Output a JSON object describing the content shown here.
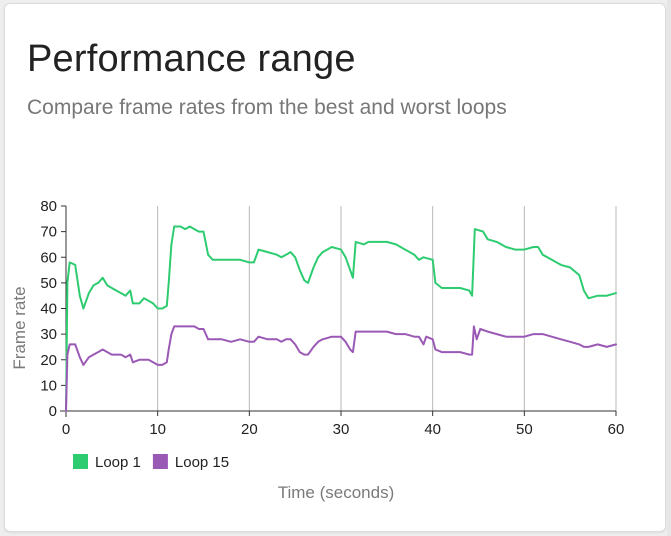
{
  "card": {
    "title": "Performance range",
    "subtitle": "Compare frame rates from the best and worst loops"
  },
  "chart_data": {
    "type": "line",
    "xlabel": "Time (seconds)",
    "ylabel": "Frame rate",
    "xlim": [
      0,
      60
    ],
    "ylim": [
      0,
      80
    ],
    "x_ticks": [
      0,
      10,
      20,
      30,
      40,
      50,
      60
    ],
    "y_ticks": [
      0,
      10,
      20,
      30,
      40,
      50,
      60,
      70,
      80
    ],
    "grid": "vertical",
    "legend_position": "bottom-left",
    "series": [
      {
        "name": "Loop 1",
        "color": "#2ecc71",
        "points": [
          [
            0,
            0
          ],
          [
            0.15,
            50
          ],
          [
            0.4,
            58
          ],
          [
            1.0,
            57
          ],
          [
            1.5,
            45
          ],
          [
            1.9,
            40
          ],
          [
            2.5,
            46
          ],
          [
            3.0,
            49
          ],
          [
            3.5,
            50
          ],
          [
            4.0,
            52
          ],
          [
            4.5,
            49
          ],
          [
            5.0,
            48
          ],
          [
            5.5,
            47
          ],
          [
            6.0,
            46
          ],
          [
            6.5,
            45
          ],
          [
            7.0,
            47
          ],
          [
            7.3,
            42
          ],
          [
            8.0,
            42
          ],
          [
            8.5,
            44
          ],
          [
            9.0,
            43
          ],
          [
            9.5,
            42
          ],
          [
            10.0,
            40
          ],
          [
            10.5,
            40
          ],
          [
            11.0,
            41
          ],
          [
            11.2,
            50
          ],
          [
            11.5,
            65
          ],
          [
            11.8,
            72
          ],
          [
            12.5,
            72
          ],
          [
            13.0,
            71
          ],
          [
            13.5,
            72
          ],
          [
            14.0,
            71
          ],
          [
            14.5,
            70
          ],
          [
            15.0,
            70
          ],
          [
            15.5,
            61
          ],
          [
            16.0,
            59
          ],
          [
            17.0,
            59
          ],
          [
            18.0,
            59
          ],
          [
            19.0,
            59
          ],
          [
            20.0,
            58
          ],
          [
            20.5,
            58
          ],
          [
            21.0,
            63
          ],
          [
            22.0,
            62
          ],
          [
            23.0,
            61
          ],
          [
            23.5,
            60
          ],
          [
            24.0,
            61
          ],
          [
            24.5,
            62
          ],
          [
            25.0,
            60
          ],
          [
            25.5,
            55
          ],
          [
            26.0,
            51
          ],
          [
            26.4,
            50
          ],
          [
            27.0,
            56
          ],
          [
            27.5,
            60
          ],
          [
            28.0,
            62
          ],
          [
            29.0,
            64
          ],
          [
            30.0,
            63
          ],
          [
            30.5,
            60
          ],
          [
            31.0,
            55
          ],
          [
            31.3,
            52
          ],
          [
            31.6,
            66
          ],
          [
            32.5,
            65
          ],
          [
            33.0,
            66
          ],
          [
            34.0,
            66
          ],
          [
            35.0,
            66
          ],
          [
            36.0,
            65
          ],
          [
            37.0,
            63
          ],
          [
            38.0,
            61
          ],
          [
            38.5,
            59
          ],
          [
            39.0,
            60
          ],
          [
            40.0,
            59
          ],
          [
            40.3,
            50
          ],
          [
            41.0,
            48
          ],
          [
            42.0,
            48
          ],
          [
            43.0,
            48
          ],
          [
            44.0,
            47
          ],
          [
            44.3,
            45
          ],
          [
            44.6,
            71
          ],
          [
            45.5,
            70
          ],
          [
            46.0,
            67
          ],
          [
            47.0,
            66
          ],
          [
            48.0,
            64
          ],
          [
            49.0,
            63
          ],
          [
            50.0,
            63
          ],
          [
            51.0,
            64
          ],
          [
            51.5,
            64
          ],
          [
            52.0,
            61
          ],
          [
            52.5,
            60
          ],
          [
            53.0,
            59
          ],
          [
            54.0,
            57
          ],
          [
            55.0,
            56
          ],
          [
            56.0,
            53
          ],
          [
            56.5,
            47
          ],
          [
            57.0,
            44
          ],
          [
            58.0,
            45
          ],
          [
            59.0,
            45
          ],
          [
            60.0,
            46
          ]
        ]
      },
      {
        "name": "Loop 15",
        "color": "#9b59b6",
        "points": [
          [
            0,
            0
          ],
          [
            0.15,
            22
          ],
          [
            0.4,
            26
          ],
          [
            1.0,
            26
          ],
          [
            1.5,
            21
          ],
          [
            1.9,
            18
          ],
          [
            2.5,
            21
          ],
          [
            3.0,
            22
          ],
          [
            3.5,
            23
          ],
          [
            4.0,
            24
          ],
          [
            4.5,
            23
          ],
          [
            5.0,
            22
          ],
          [
            5.5,
            22
          ],
          [
            6.0,
            22
          ],
          [
            6.5,
            21
          ],
          [
            7.0,
            22
          ],
          [
            7.3,
            19
          ],
          [
            8.0,
            20
          ],
          [
            8.5,
            20
          ],
          [
            9.0,
            20
          ],
          [
            9.5,
            19
          ],
          [
            10.0,
            18
          ],
          [
            10.5,
            18
          ],
          [
            11.0,
            19
          ],
          [
            11.2,
            24
          ],
          [
            11.5,
            30
          ],
          [
            11.8,
            33
          ],
          [
            12.5,
            33
          ],
          [
            13.0,
            33
          ],
          [
            13.5,
            33
          ],
          [
            14.0,
            33
          ],
          [
            14.5,
            32
          ],
          [
            15.0,
            32
          ],
          [
            15.5,
            28
          ],
          [
            16.0,
            28
          ],
          [
            17.0,
            28
          ],
          [
            18.0,
            27
          ],
          [
            19.0,
            28
          ],
          [
            20.0,
            27
          ],
          [
            20.5,
            27
          ],
          [
            21.0,
            29
          ],
          [
            22.0,
            28
          ],
          [
            23.0,
            28
          ],
          [
            23.5,
            27
          ],
          [
            24.0,
            28
          ],
          [
            24.5,
            28
          ],
          [
            25.0,
            26
          ],
          [
            25.5,
            23
          ],
          [
            26.0,
            22
          ],
          [
            26.4,
            22
          ],
          [
            27.0,
            25
          ],
          [
            27.5,
            27
          ],
          [
            28.0,
            28
          ],
          [
            29.0,
            29
          ],
          [
            30.0,
            29
          ],
          [
            30.5,
            27
          ],
          [
            31.0,
            24
          ],
          [
            31.3,
            23
          ],
          [
            31.6,
            31
          ],
          [
            32.5,
            31
          ],
          [
            33.0,
            31
          ],
          [
            34.0,
            31
          ],
          [
            35.0,
            31
          ],
          [
            36.0,
            30
          ],
          [
            37.0,
            30
          ],
          [
            38.0,
            29
          ],
          [
            38.5,
            29
          ],
          [
            39.0,
            26
          ],
          [
            39.3,
            29
          ],
          [
            40.0,
            28
          ],
          [
            40.3,
            24
          ],
          [
            41.0,
            23
          ],
          [
            42.0,
            23
          ],
          [
            43.0,
            23
          ],
          [
            44.0,
            22
          ],
          [
            44.3,
            22
          ],
          [
            44.5,
            33
          ],
          [
            44.8,
            28
          ],
          [
            45.2,
            32
          ],
          [
            46.0,
            31
          ],
          [
            47.0,
            30
          ],
          [
            48.0,
            29
          ],
          [
            49.0,
            29
          ],
          [
            50.0,
            29
          ],
          [
            51.0,
            30
          ],
          [
            52.0,
            30
          ],
          [
            53.0,
            29
          ],
          [
            54.0,
            28
          ],
          [
            55.0,
            27
          ],
          [
            56.0,
            26
          ],
          [
            56.5,
            25
          ],
          [
            57.0,
            25
          ],
          [
            58.0,
            26
          ],
          [
            59.0,
            25
          ],
          [
            60.0,
            26
          ]
        ]
      }
    ]
  }
}
